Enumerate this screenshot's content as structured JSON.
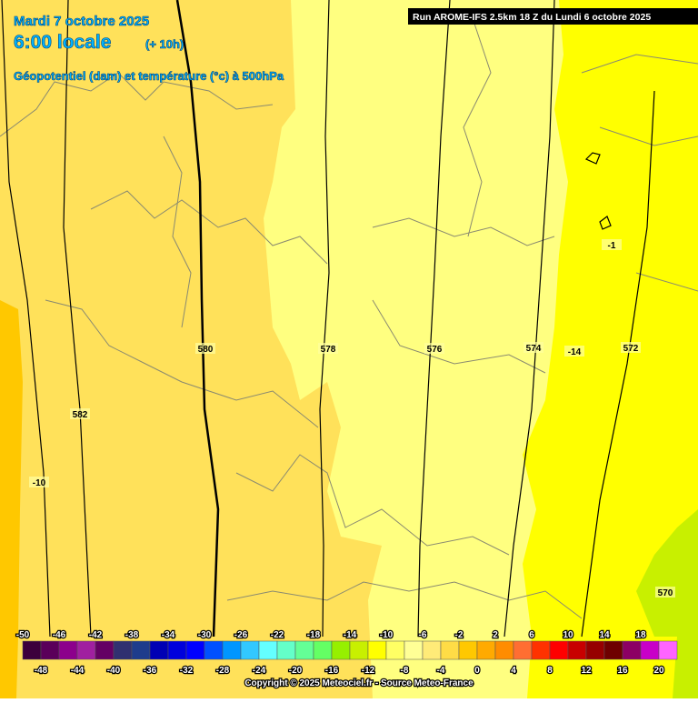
{
  "header": {
    "date_line": "Mardi 7 octobre 2025",
    "time": "6:00 locale",
    "offset": "(+ 10h)",
    "subtitle": "Géopotentiel (dam) et température (°c) à 500hPa",
    "run": "Run AROME-IFS 2.5km 18 Z du Lundi 6 octobre 2025"
  },
  "contour_labels": [
    "580",
    "578",
    "576",
    "574",
    "572",
    "582",
    "570",
    "-10",
    "-14",
    "-1"
  ],
  "scale": {
    "top_labels": [
      -50,
      -46,
      -42,
      -38,
      -34,
      -30,
      -26,
      -22,
      -18,
      -14,
      -10,
      -6,
      -2,
      2,
      6,
      10,
      14,
      18
    ],
    "bottom_labels": [
      -48,
      -44,
      -40,
      -36,
      -32,
      -28,
      -24,
      -20,
      -16,
      -12,
      -8,
      -4,
      0,
      4,
      8,
      12,
      16,
      20
    ],
    "colors": [
      "#3c003c",
      "#5a005a",
      "#8c008c",
      "#a020a0",
      "#640064",
      "#303070",
      "#1e3c8c",
      "#0000b4",
      "#0000dc",
      "#0000ff",
      "#0050ff",
      "#0096ff",
      "#32c8ff",
      "#64ffff",
      "#64ffc8",
      "#64ff96",
      "#64ff64",
      "#96f000",
      "#c8f000",
      "#ffff00",
      "#ffff64",
      "#ffff96",
      "#ffeb78",
      "#ffdc46",
      "#ffc800",
      "#ffaa00",
      "#ff8c00",
      "#ff6e32",
      "#ff3200",
      "#ff0000",
      "#c80000",
      "#960000",
      "#6e0000",
      "#8c0064",
      "#c800c8",
      "#ff64ff"
    ]
  },
  "copyright": "Copyright © 2025 Meteociel.fr - Source Meteo-France"
}
